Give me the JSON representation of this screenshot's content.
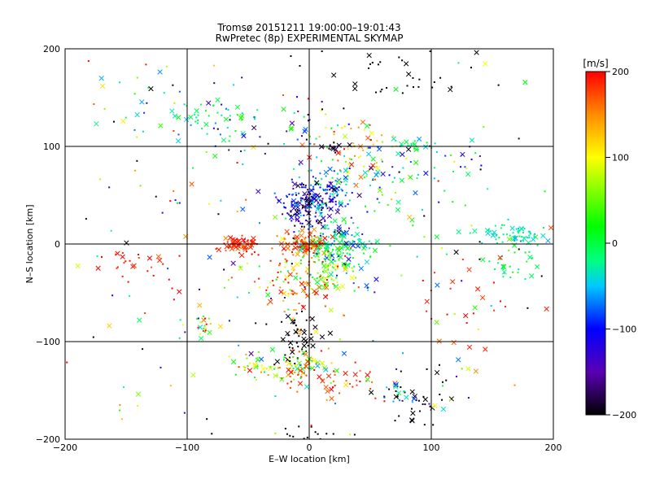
{
  "chart_data": {
    "type": "scatter",
    "title": "Tromsø 20151211 19:00:00–19:01:43",
    "subtitle": "RwPretec (8p) EXPERIMENTAL SKYMAP",
    "xlabel": "E–W location [km]",
    "ylabel": "N–S location [km]",
    "xlim": [
      -200,
      200
    ],
    "ylim": [
      -200,
      200
    ],
    "x_ticks": [
      "−200",
      "−100",
      "0",
      "100",
      "200"
    ],
    "y_ticks": [
      "−200",
      "−100",
      "0",
      "100",
      "200"
    ],
    "grid": true,
    "colorbar": {
      "label": "[m/s]",
      "range": [
        -200,
        200
      ],
      "ticks": [
        "200",
        "100",
        "0",
        "−100",
        "−200"
      ],
      "colormap": [
        "#000000",
        "#5a00b4",
        "#0000ff",
        "#00c8ff",
        "#00ff80",
        "#00ff00",
        "#ffff00",
        "#ff8c00",
        "#ff0000"
      ]
    },
    "markers": {
      "small": "dot",
      "large": "cross"
    },
    "clusters": [
      {
        "x": 0,
        "y": 40,
        "sx": 12,
        "sy": 12,
        "v": -140,
        "sv": 50,
        "n": 160
      },
      {
        "x": 10,
        "y": 50,
        "sx": 14,
        "sy": 10,
        "v": -90,
        "sv": 40,
        "n": 90
      },
      {
        "x": -5,
        "y": 0,
        "sx": 10,
        "sy": 5,
        "v": 180,
        "sv": 20,
        "n": 110
      },
      {
        "x": -55,
        "y": 0,
        "sx": 10,
        "sy": 4,
        "v": 190,
        "sv": 15,
        "n": 70
      },
      {
        "x": 25,
        "y": 0,
        "sx": 15,
        "sy": 10,
        "v": -20,
        "sv": 40,
        "n": 110
      },
      {
        "x": 15,
        "y": -25,
        "sx": 16,
        "sy": 14,
        "v": 30,
        "sv": 70,
        "n": 120
      },
      {
        "x": -10,
        "y": -40,
        "sx": 14,
        "sy": 20,
        "v": 160,
        "sv": 40,
        "n": 80
      },
      {
        "x": -10,
        "y": -100,
        "sx": 8,
        "sy": 15,
        "v": -200,
        "sv": 10,
        "n": 50
      },
      {
        "x": -10,
        "y": -125,
        "sx": 15,
        "sy": 8,
        "v": 60,
        "sv": 80,
        "n": 70
      },
      {
        "x": -50,
        "y": -125,
        "sx": 15,
        "sy": 8,
        "v": 80,
        "sv": 60,
        "n": 30
      },
      {
        "x": 20,
        "y": -140,
        "sx": 25,
        "sy": 10,
        "v": 180,
        "sv": 20,
        "n": 40
      },
      {
        "x": 90,
        "y": -160,
        "sx": 15,
        "sy": 15,
        "v": -200,
        "sv": 5,
        "n": 35
      },
      {
        "x": 75,
        "y": -150,
        "sx": 10,
        "sy": 10,
        "v": -60,
        "sv": 40,
        "n": 15
      },
      {
        "x": 170,
        "y": 10,
        "sx": 15,
        "sy": 6,
        "v": -30,
        "sv": 20,
        "n": 70
      },
      {
        "x": 170,
        "y": -20,
        "sx": 12,
        "sy": 10,
        "v": 0,
        "sv": 30,
        "n": 30
      },
      {
        "x": 90,
        "y": 100,
        "sx": 10,
        "sy": 5,
        "v": -20,
        "sv": 30,
        "n": 25
      },
      {
        "x": 40,
        "y": 100,
        "sx": 15,
        "sy": 15,
        "v": 130,
        "sv": 40,
        "n": 55
      },
      {
        "x": 20,
        "y": 100,
        "sx": 5,
        "sy": 3,
        "v": -190,
        "sv": 10,
        "n": 15
      },
      {
        "x": 30,
        "y": 75,
        "sx": 20,
        "sy": 12,
        "v": -50,
        "sv": 60,
        "n": 45
      },
      {
        "x": -80,
        "y": 130,
        "sx": 15,
        "sy": 10,
        "v": -20,
        "sv": 30,
        "n": 40
      },
      {
        "x": -20,
        "y": 120,
        "sx": 30,
        "sy": 15,
        "v": -60,
        "sv": 90,
        "n": 40
      },
      {
        "x": 60,
        "y": 175,
        "sx": 40,
        "sy": 15,
        "v": -200,
        "sv": 5,
        "n": 40
      },
      {
        "x": 80,
        "y": 65,
        "sx": 20,
        "sy": 15,
        "v": 0,
        "sv": 50,
        "n": 25
      },
      {
        "x": -140,
        "y": -20,
        "sx": 15,
        "sy": 10,
        "v": 190,
        "sv": 15,
        "n": 25
      },
      {
        "x": -85,
        "y": -85,
        "sx": 6,
        "sy": 8,
        "v": 100,
        "sv": 90,
        "n": 22
      },
      {
        "x": 130,
        "y": -60,
        "sx": 25,
        "sy": 25,
        "v": 190,
        "sv": 15,
        "n": 25
      },
      {
        "x": -140,
        "y": 140,
        "sx": 25,
        "sy": 30,
        "v": 0,
        "sv": 80,
        "n": 25
      },
      {
        "x": 135,
        "y": 85,
        "sx": 8,
        "sy": 6,
        "v": -100,
        "sv": 80,
        "n": 12
      },
      {
        "x": 0,
        "y": -195,
        "sx": 15,
        "sy": 5,
        "v": -200,
        "sv": 5,
        "n": 15
      },
      {
        "x": 0,
        "y": 0,
        "sx": 110,
        "sy": 110,
        "v": 0,
        "sv": 140,
        "n": 280
      }
    ]
  }
}
